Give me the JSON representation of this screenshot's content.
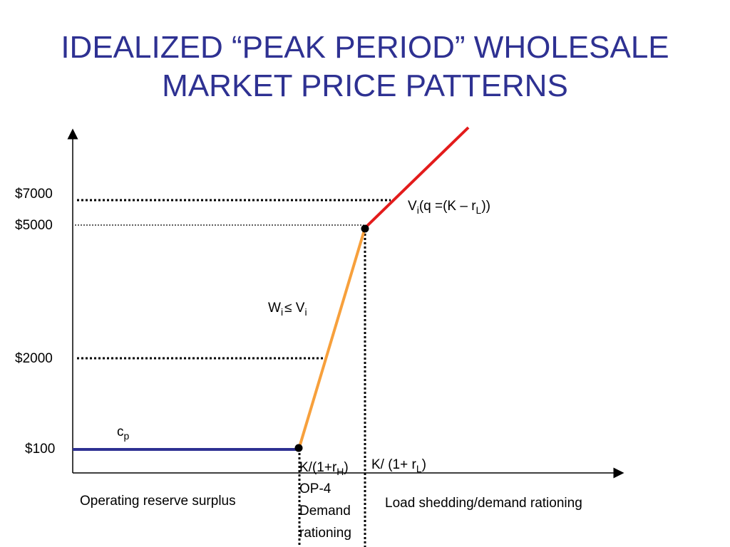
{
  "title": {
    "line1": "IDEALIZED “PEAK PERIOD” WHOLESALE",
    "line2": "MARKET PRICE PATTERNS"
  },
  "colors": {
    "title": "#2e3192",
    "flat_segment": "#2e3192",
    "rising_segment": "#f7a03c",
    "upper_segment": "#e31b1b"
  },
  "chart_data": {
    "type": "line",
    "y_tick_labels": [
      "$7000",
      "$5000",
      "$2000",
      "$100"
    ],
    "price_levels": [
      {
        "label": "$7000",
        "value": 7000,
        "line_style": "heavy-dotted"
      },
      {
        "label": "$5000",
        "value": 5000,
        "line_style": "fine-dotted"
      },
      {
        "label": "$2000",
        "value": 2000,
        "line_style": "heavy-dotted"
      },
      {
        "label": "$100",
        "value": 100,
        "line_style": "solid"
      }
    ],
    "series": [
      {
        "label": "c",
        "label_sub": "p",
        "color": "#2e3192",
        "description": "flat"
      },
      {
        "label": "W",
        "label_sub": "i",
        "label_rel": "≤ V",
        "label_sub2": "i",
        "color": "#f7a03c",
        "description": "rising"
      },
      {
        "label": "V",
        "label_sub": "i",
        "label_rest": "(q =(K – r",
        "label_sub2": "L",
        "label_end": "))",
        "color": "#e31b1b",
        "description": "upper"
      }
    ],
    "points": [
      {
        "name": "kink-low",
        "x_label": {
          "pre": "K/(1+r",
          "sub": "H",
          "post": ")"
        }
      },
      {
        "name": "kink-high",
        "x_label": {
          "pre": "K/ (1+ r",
          "sub": "L",
          "post": ")"
        }
      }
    ],
    "annotations": {
      "op4": "OP-4",
      "demand": "Demand",
      "rationing": "rationing",
      "left_region": "Operating reserve surplus",
      "right_region": "Load shedding/demand rationing"
    },
    "grid": false,
    "legend": "none"
  }
}
